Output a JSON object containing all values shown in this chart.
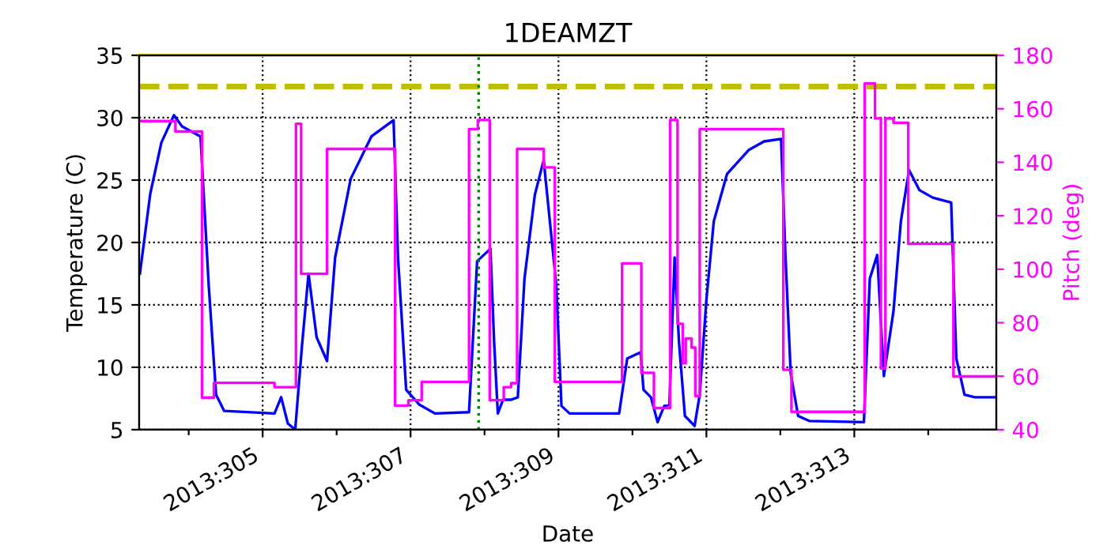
{
  "chart_data": {
    "type": "line",
    "title": "1DEAMZT",
    "xlabel": "Date",
    "ylabel": "Temperature (C)",
    "y2label": "Pitch (deg)",
    "xlim": [
      "2013-10-30T07:55",
      "2013-11-10T22:05"
    ],
    "xticks": [
      {
        "value": "2013-10-31",
        "label": null
      },
      {
        "value": "2013-11-01",
        "label": "2013:305"
      },
      {
        "value": "2013-11-02",
        "label": null
      },
      {
        "value": "2013-11-03",
        "label": "2013:307"
      },
      {
        "value": "2013-11-04",
        "label": null
      },
      {
        "value": "2013-11-05",
        "label": "2013:309"
      },
      {
        "value": "2013-11-06",
        "label": null
      },
      {
        "value": "2013-11-07",
        "label": "2013:311"
      },
      {
        "value": "2013-11-08",
        "label": null
      },
      {
        "value": "2013-11-09",
        "label": "2013:313"
      },
      {
        "value": "2013-11-10",
        "label": null
      }
    ],
    "ylim": [
      5,
      35
    ],
    "yticks": [
      5,
      10,
      15,
      20,
      25,
      30,
      35
    ],
    "y2lim": [
      40,
      180
    ],
    "y2ticks": [
      40,
      60,
      80,
      100,
      120,
      140,
      160,
      180
    ],
    "grid": true,
    "legend": false,
    "ref_lines": [
      {
        "axis": "y",
        "value": 35,
        "label": null,
        "color": "#bfbf00",
        "line_style": "solid"
      },
      {
        "axis": "y",
        "value": 32.5,
        "label": null,
        "color": "#bfbf00",
        "line_style": "dashed"
      },
      {
        "axis": "x",
        "value": "2013-11-03T22:05",
        "label": null,
        "color": "#008000",
        "line_style": "dotted"
      }
    ],
    "series": [
      {
        "color": "#0000ff",
        "x": [
          "2013-10-30T08:10",
          "2013-10-30T11:31",
          "2013-10-30T15:07",
          "2013-10-30T19:12",
          "2013-10-30T21:50",
          "2013-10-31T03:50",
          "2013-10-31T06:29",
          "2013-10-31T08:53",
          "2013-10-31T11:31",
          "2013-11-01T03:50",
          "2013-11-01T06:00",
          "2013-11-01T08:10",
          "2013-11-01T10:34",
          "2013-11-01T12:43",
          "2013-11-01T14:53",
          "2013-11-01T17:31",
          "2013-11-01T20:53",
          "2013-11-01T23:31",
          "2013-11-02T04:34",
          "2013-11-02T11:17",
          "2013-11-02T18:29",
          "2013-11-02T19:55",
          "2013-11-02T22:34",
          "2013-11-03T02:53",
          "2013-11-03T07:55",
          "2013-11-03T18:58",
          "2013-11-03T21:36",
          "2013-11-04T01:55",
          "2013-11-04T03:07",
          "2013-11-04T04:19",
          "2013-11-04T06:00",
          "2013-11-04T08:38",
          "2013-11-04T10:48",
          "2013-11-04T12:58",
          "2013-11-04T16:19",
          "2013-11-04T19:12",
          "2013-11-04T23:17",
          "2013-11-05T00:58",
          "2013-11-05T03:36",
          "2013-11-05T19:41",
          "2013-11-05T22:19",
          "2013-11-06T02:38",
          "2013-11-06T03:36",
          "2013-11-06T06:00",
          "2013-11-06T08:10",
          "2013-11-06T10:19",
          "2013-11-06T12:00",
          "2013-11-06T13:41",
          "2013-11-06T15:07",
          "2013-11-06T17:02",
          "2013-11-06T20:10",
          "2013-11-06T21:50",
          "2013-11-07T00:00",
          "2013-11-07T02:24",
          "2013-11-07T06:43",
          "2013-11-07T13:41",
          "2013-11-07T18:43",
          "2013-11-08T00:14",
          "2013-11-08T01:41",
          "2013-11-08T03:22",
          "2013-11-08T05:46",
          "2013-11-08T09:22",
          "2013-11-09T03:07",
          "2013-11-09T05:02",
          "2013-11-09T07:26",
          "2013-11-09T09:36",
          "2013-11-09T12:43",
          "2013-11-09T15:07",
          "2013-11-09T17:46",
          "2013-11-09T21:07",
          "2013-11-10T01:26",
          "2013-11-10T07:26",
          "2013-11-10T09:07",
          "2013-11-10T11:46",
          "2013-11-10T15:07",
          "2013-11-10T22:05"
        ],
        "values": [
          17.5,
          23.9,
          28.0,
          30.2,
          29.3,
          28.5,
          16.6,
          7.8,
          6.5,
          6.3,
          7.6,
          5.5,
          5.0,
          11.6,
          17.5,
          12.4,
          10.5,
          18.8,
          25.1,
          28.5,
          29.8,
          18.8,
          8.2,
          7.0,
          6.3,
          6.4,
          18.5,
          19.5,
          12.0,
          6.3,
          7.4,
          7.4,
          7.6,
          17.1,
          23.8,
          26.6,
          16.6,
          6.9,
          6.3,
          6.3,
          10.7,
          11.2,
          8.2,
          7.6,
          5.6,
          6.9,
          7.0,
          18.8,
          12.0,
          6.1,
          5.3,
          7.8,
          15.4,
          21.7,
          25.5,
          27.4,
          28.1,
          28.3,
          18.8,
          9.5,
          6.1,
          5.7,
          5.6,
          17.1,
          19.0,
          9.3,
          14.5,
          21.7,
          25.8,
          24.2,
          23.6,
          23.2,
          10.7,
          7.8,
          7.6,
          7.6
        ]
      },
      {
        "type": "step",
        "axis": "y2",
        "color": "#ff00ff",
        "x": [
          "2013-10-30T07:55",
          "2013-10-30T19:41",
          "2013-10-31T04:19",
          "2013-10-31T08:10",
          "2013-11-01T03:50",
          "2013-11-01T10:48",
          "2013-11-01T12:29",
          "2013-11-01T20:53",
          "2013-11-02T18:58",
          "2013-11-02T23:17",
          "2013-11-03T03:36",
          "2013-11-03T18:58",
          "2013-11-03T21:50",
          "2013-11-04T01:41",
          "2013-11-04T06:14",
          "2013-11-04T08:38",
          "2013-11-04T10:34",
          "2013-11-04T19:12",
          "2013-11-04T22:48",
          "2013-11-05T20:38",
          "2013-11-06T02:53",
          "2013-11-06T06:58",
          "2013-11-06T12:14",
          "2013-11-06T14:38",
          "2013-11-06T16:19",
          "2013-11-06T17:17",
          "2013-11-06T19:12",
          "2013-11-06T20:24",
          "2013-11-06T21:50",
          "2013-11-08T00:58",
          "2013-11-08T03:36",
          "2013-11-09T03:22",
          "2013-11-09T06:43",
          "2013-11-09T08:38",
          "2013-11-09T10:05",
          "2013-11-09T12:43",
          "2013-11-09T17:31",
          "2013-11-10T08:10",
          "2013-11-10T22:05"
        ],
        "values": [
          155.4,
          151.5,
          52.0,
          57.5,
          55.9,
          154.4,
          98.3,
          145.0,
          49.0,
          51.0,
          57.9,
          152.4,
          155.8,
          51.0,
          55.9,
          57.4,
          145.0,
          138.1,
          57.9,
          102.2,
          61.3,
          48.1,
          155.8,
          79.6,
          64.8,
          74.1,
          70.7,
          52.6,
          152.4,
          62.4,
          46.7,
          169.5,
          156.4,
          62.9,
          156.4,
          154.8,
          109.5,
          59.9,
          59.9
        ]
      }
    ]
  }
}
